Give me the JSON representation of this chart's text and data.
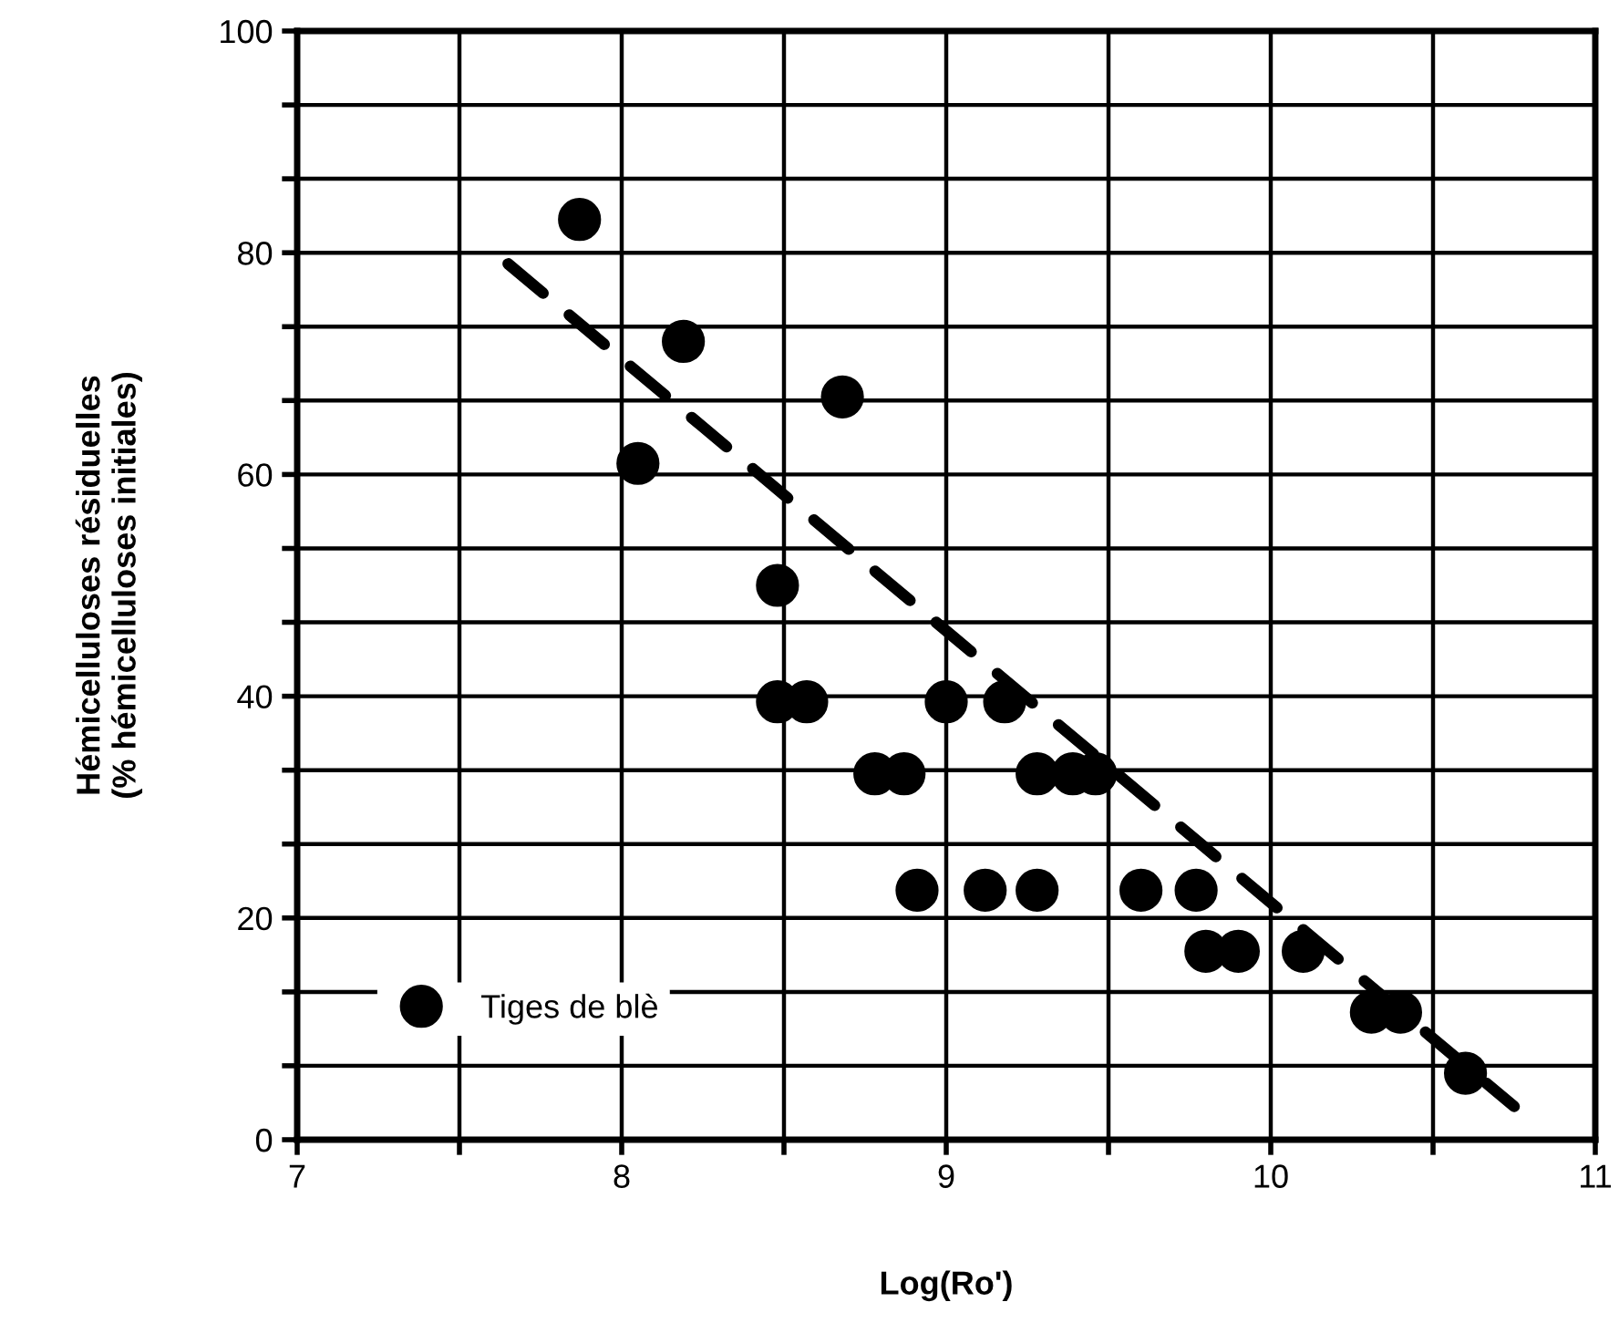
{
  "chart_data": {
    "type": "scatter",
    "xlabel": "Log(Ro')",
    "ylabel": "Hémicelluloses résiduelles\n(% hémicelluloses initiales)",
    "xlim": [
      7,
      11
    ],
    "ylim": [
      0,
      100
    ],
    "xticks": [
      7,
      {
        "value": 7.5,
        "label": null
      },
      8,
      {
        "value": 8.5,
        "label": null
      },
      9,
      {
        "value": 9.5,
        "label": null
      },
      10,
      {
        "value": 10.5,
        "label": null
      },
      11
    ],
    "yticks": [
      0,
      {
        "value": 6.67,
        "label": null
      },
      {
        "value": 13.33,
        "label": null
      },
      20,
      {
        "value": 26.67,
        "label": null
      },
      {
        "value": 33.33,
        "label": null
      },
      40,
      {
        "value": 46.67,
        "label": null
      },
      {
        "value": 53.33,
        "label": null
      },
      60,
      {
        "value": 66.67,
        "label": null
      },
      {
        "value": 73.33,
        "label": null
      },
      80,
      {
        "value": 86.67,
        "label": null
      },
      {
        "value": 93.33,
        "label": null
      },
      100
    ],
    "grid": true,
    "legend": "bottom left",
    "marker": "circle",
    "series": [
      {
        "name": "Tiges de blè",
        "color": "#000000",
        "x": [
          7.87,
          8.05,
          8.19,
          8.48,
          8.48,
          8.57,
          8.68,
          8.78,
          8.87,
          8.91,
          9.0,
          9.12,
          9.18,
          9.28,
          9.28,
          9.39,
          9.46,
          9.6,
          9.77,
          9.8,
          9.9,
          10.1,
          10.31,
          10.4,
          10.6
        ],
        "values": [
          83,
          61,
          72,
          50,
          39.5,
          39.5,
          67,
          33,
          33,
          22.5,
          39.5,
          22.5,
          39.5,
          33,
          22.5,
          33,
          33,
          22.5,
          22.5,
          17,
          17,
          17,
          11.5,
          11.5,
          6
        ]
      },
      {
        "type": "line",
        "color": "#000000",
        "line_style": "dashed",
        "marker": "none",
        "x": [
          7.65,
          10.75
        ],
        "values": [
          79,
          3
        ]
      }
    ]
  }
}
